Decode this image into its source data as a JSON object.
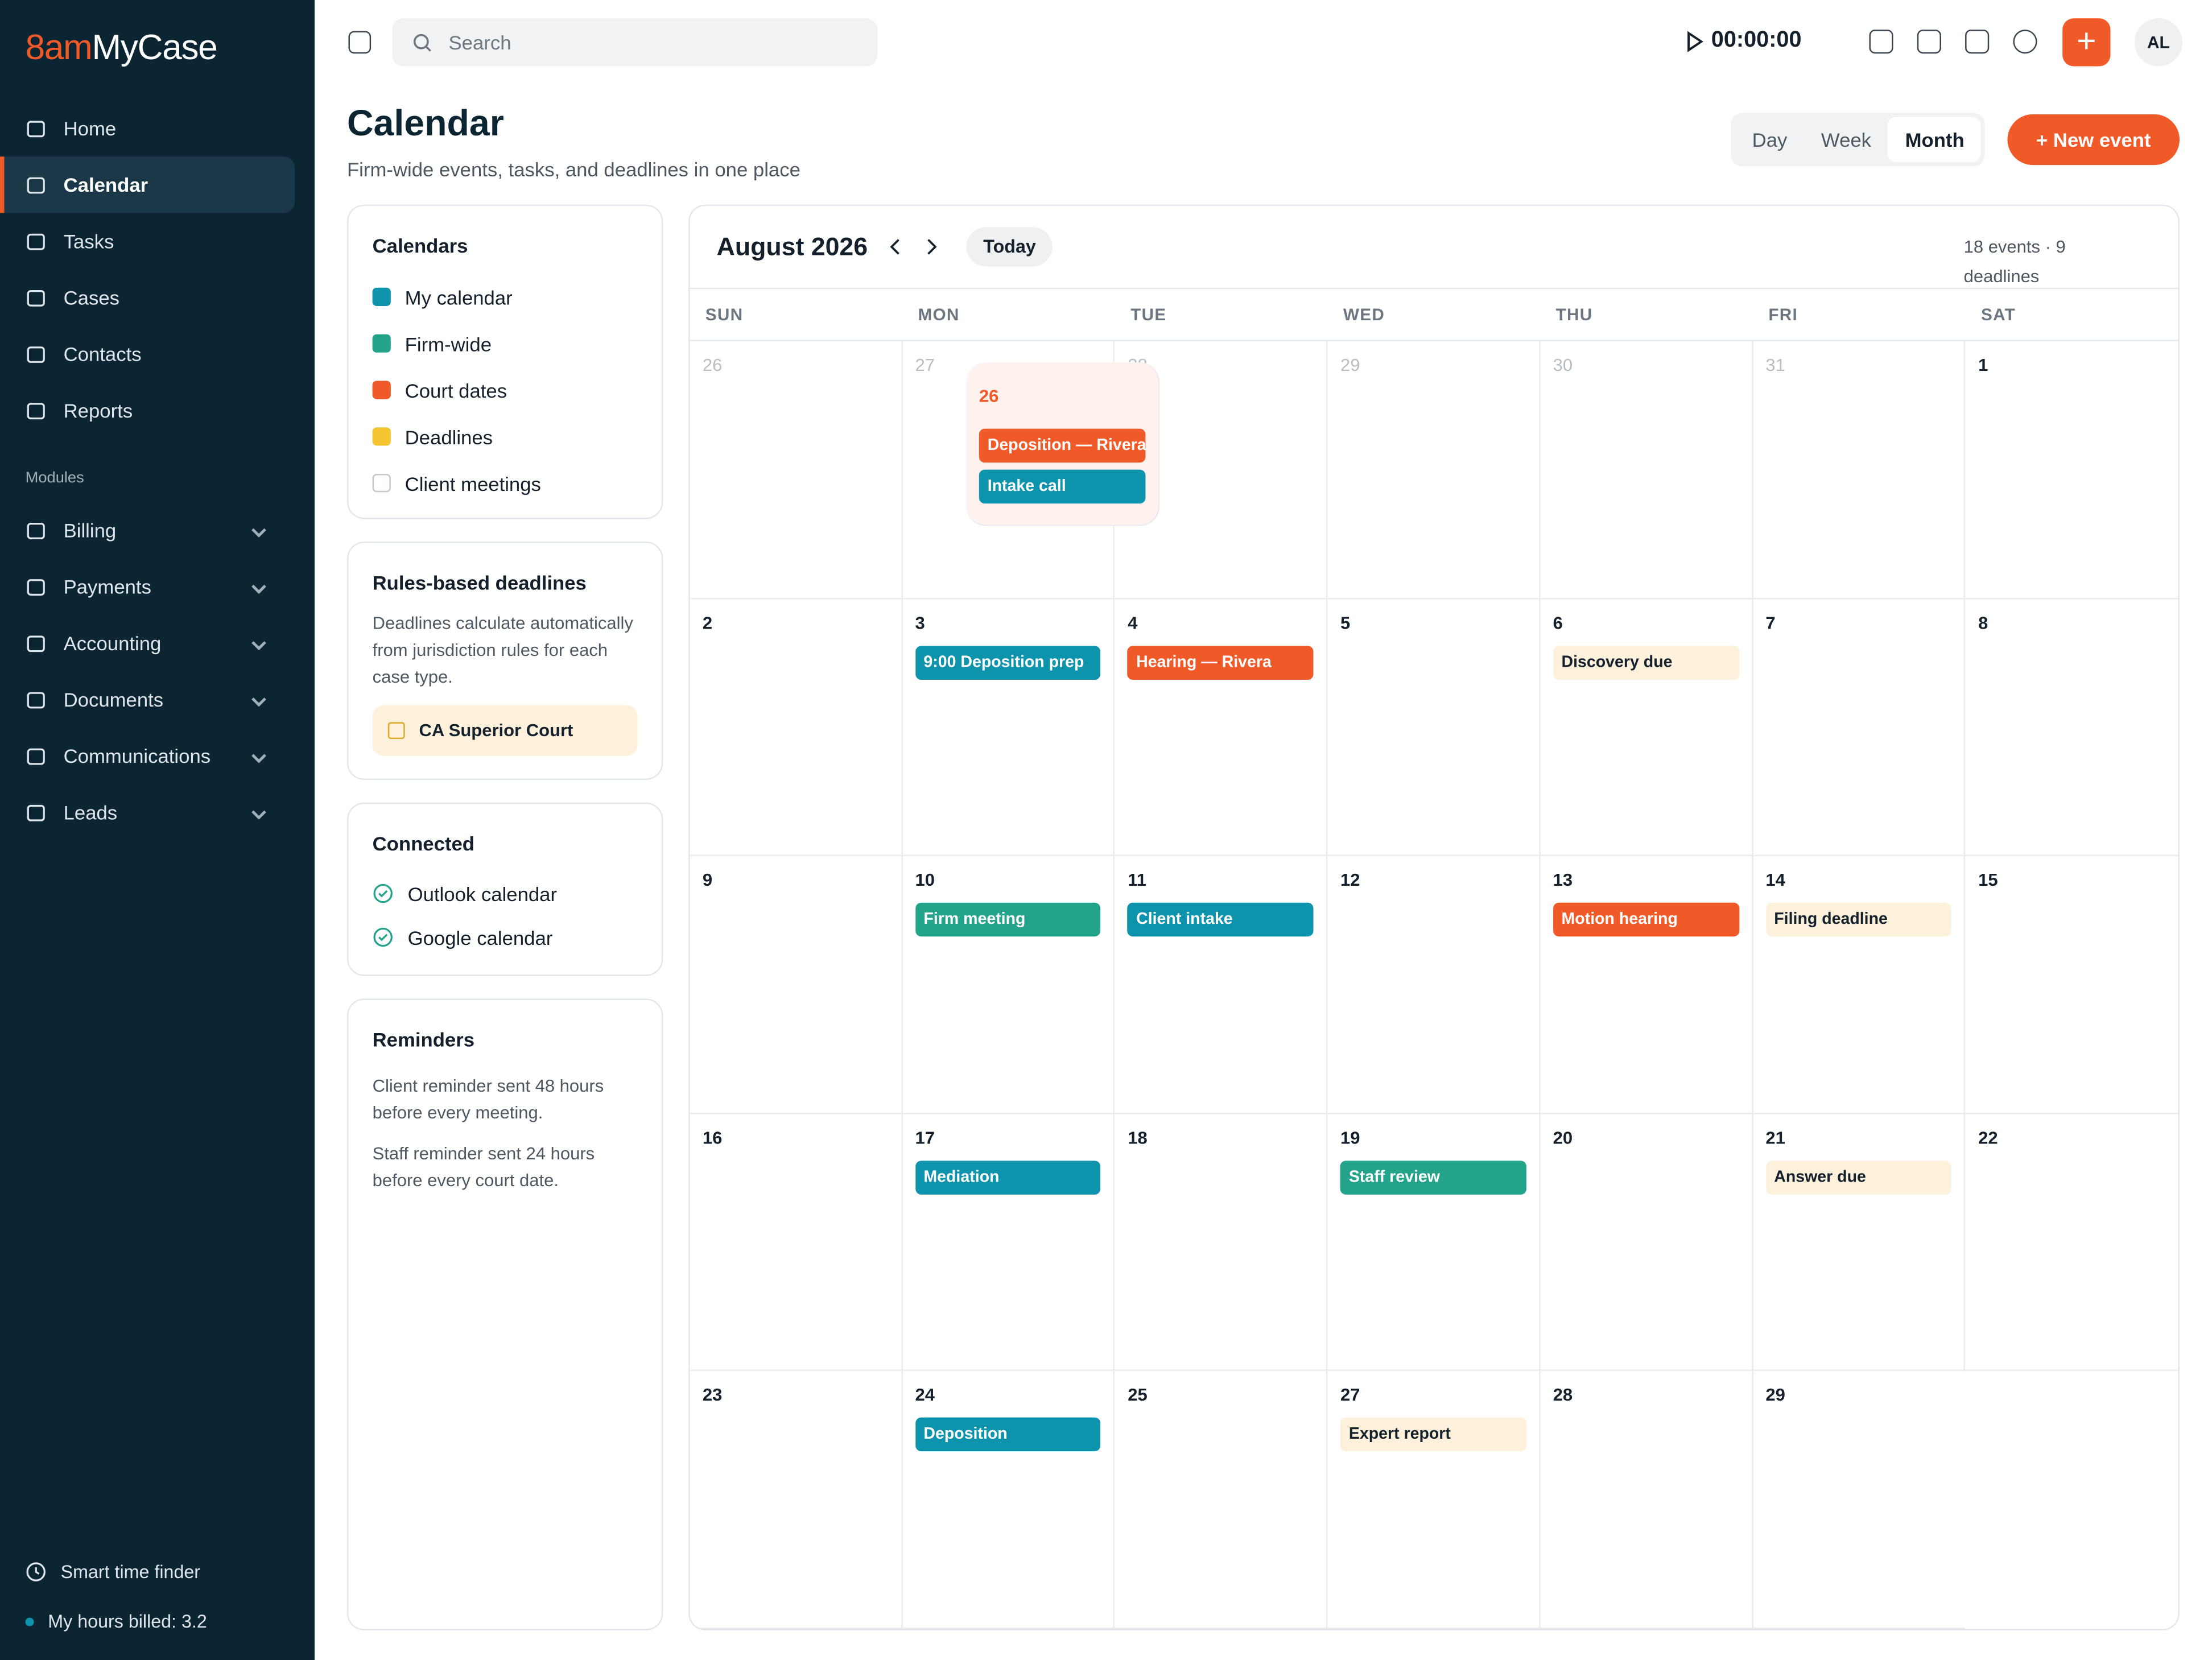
{
  "brand": {
    "prefix": "8am",
    "name": "MyCase"
  },
  "nav": [
    "Home",
    "Calendar",
    "Tasks",
    "Cases",
    "Contacts",
    "Reports"
  ],
  "modules_label": "Modules",
  "modules": [
    "Billing",
    "Payments",
    "Accounting",
    "Documents",
    "Communications",
    "Leads"
  ],
  "footer": {
    "smart": "Smart time finder",
    "hours": "My hours billed: 3.2"
  },
  "top": {
    "search": "Search",
    "timer": "00:00:00",
    "avatar": "AL",
    "add": "+"
  },
  "page": {
    "title": "Calendar",
    "subtitle": "Firm-wide events, tasks, and deadlines in one place",
    "views": [
      "Day",
      "Week",
      "Month"
    ],
    "new_event": "+ New event"
  },
  "calendars": {
    "title": "Calendars",
    "items": [
      {
        "label": "My calendar",
        "color": "#0e93ad"
      },
      {
        "label": "Firm-wide",
        "color": "#22a38a"
      },
      {
        "label": "Court dates",
        "color": "#f05a28"
      },
      {
        "label": "Deadlines",
        "color": "#f5c431"
      },
      {
        "label": "Client meetings",
        "color": null
      }
    ]
  },
  "rules": {
    "title": "Rules-based deadlines",
    "text": "Deadlines calculate automatically from jurisdiction rules for each case type.",
    "court": "CA Superior Court"
  },
  "connected": {
    "title": "Connected",
    "items": [
      "Outlook calendar",
      "Google calendar"
    ]
  },
  "reminders": {
    "title": "Reminders",
    "items": [
      "Client reminder sent 48 hours before every meeting.",
      "Staff reminder sent 24 hours before every court date."
    ]
  },
  "calendar": {
    "month": "August 2026",
    "today": "Today",
    "summary": "18 events · 9 deadlines",
    "weekdays": [
      "SUN",
      "MON",
      "TUE",
      "WED",
      "THU",
      "FRI",
      "SAT"
    ],
    "weeks": [
      [
        {
          "day": 26,
          "muted": true,
          "events": []
        },
        {
          "day": 27,
          "muted": true,
          "events": []
        },
        {
          "day": 28,
          "muted": true,
          "events": []
        },
        {
          "day": 29,
          "muted": true,
          "events": []
        },
        {
          "day": 30,
          "muted": true,
          "events": []
        },
        {
          "day": 31,
          "muted": true,
          "events": []
        },
        {
          "day": 1,
          "events": []
        }
      ],
      [
        {
          "day": 2,
          "events": []
        },
        {
          "day": 3,
          "events": [
            {
              "label": "9:00 Deposition prep",
              "color": "#0e93ad"
            }
          ]
        },
        {
          "day": 4,
          "events": [
            {
              "label": "Hearing — Rivera",
              "color": "#f05a28"
            }
          ]
        },
        {
          "day": 5,
          "events": []
        },
        {
          "day": 6,
          "events": [
            {
              "label": "Discovery due",
              "color": "#fdf1dc"
            }
          ]
        },
        {
          "day": 7,
          "events": []
        },
        {
          "day": 8,
          "events": []
        }
      ],
      [
        {
          "day": 9,
          "events": []
        },
        {
          "day": 10,
          "events": [
            {
              "label": "Firm meeting",
              "color": "#22a38a"
            }
          ]
        },
        {
          "day": 11,
          "events": [
            {
              "label": "Client intake",
              "color": "#0e93ad"
            }
          ]
        },
        {
          "day": 12,
          "events": []
        },
        {
          "day": 13,
          "events": [
            {
              "label": "Motion hearing",
              "color": "#f05a28"
            }
          ]
        },
        {
          "day": 14,
          "events": [
            {
              "label": "Filing deadline",
              "color": "#fdf1dc"
            }
          ]
        },
        {
          "day": 15,
          "events": []
        }
      ],
      [
        {
          "day": 16,
          "events": []
        },
        {
          "day": 17,
          "events": [
            {
              "label": "Mediation",
              "color": "#0e93ad"
            }
          ]
        },
        {
          "day": 18,
          "events": []
        },
        {
          "day": 19,
          "events": [
            {
              "label": "Staff review",
              "color": "#22a38a"
            }
          ]
        },
        {
          "day": 20,
          "events": []
        },
        {
          "day": 21,
          "events": [
            {
              "label": "Answer due",
              "color": "#fdf1dc"
            }
          ]
        },
        {
          "day": 22,
          "events": []
        }
      ],
      [
        {
          "day": 23,
          "events": []
        },
        {
          "day": 24,
          "events": [
            {
              "label": "Deposition",
              "color": "#0e93ad"
            }
          ]
        },
        {
          "day": 25,
          "events": []
        },
        {
          "day": 26,
          "today": true,
          "events": [
            {
              "label": "Deposition — Rivera",
              "color": "#f05a28"
            },
            {
              "label": "Intake call",
              "color": "#0e93ad"
            }
          ]
        },
        {
          "day": 27,
          "events": [
            {
              "label": "Expert report",
              "color": "#fdf1dc"
            }
          ]
        },
        {
          "day": 28,
          "events": []
        },
        {
          "day": 29,
          "events": []
        }
      ]
    ]
  }
}
